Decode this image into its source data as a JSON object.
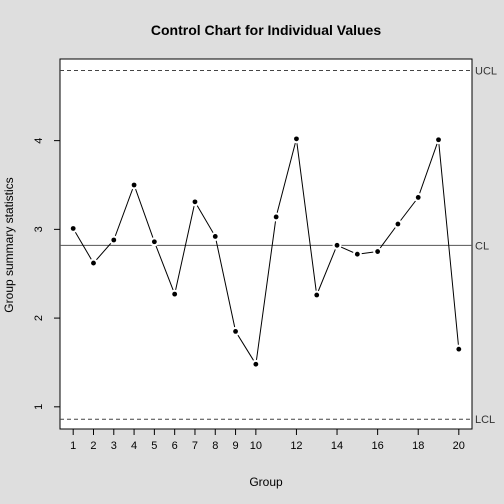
{
  "chart_data": {
    "type": "line",
    "title": "Control Chart for Individual Values",
    "xlabel": "Group",
    "ylabel": "Group summary statistics",
    "x": [
      1,
      2,
      3,
      4,
      5,
      6,
      7,
      8,
      9,
      10,
      11,
      12,
      13,
      14,
      15,
      16,
      17,
      18,
      19,
      20
    ],
    "values": [
      3.01,
      2.62,
      2.88,
      3.5,
      2.86,
      2.27,
      3.31,
      2.92,
      1.85,
      1.48,
      3.14,
      4.02,
      2.26,
      2.82,
      2.72,
      2.75,
      3.06,
      3.36,
      4.01,
      1.65
    ],
    "xlim": [
      0.35,
      20.65
    ],
    "ylim": [
      0.75,
      4.92
    ],
    "x_ticks": [
      1,
      2,
      3,
      4,
      5,
      6,
      7,
      8,
      9,
      10,
      12,
      14,
      16,
      18,
      20
    ],
    "y_ticks": [
      1,
      2,
      3,
      4
    ],
    "limits": [
      {
        "label": "UCL",
        "value": 4.79,
        "style": "dashed"
      },
      {
        "label": "CL",
        "value": 2.82,
        "style": "solid"
      },
      {
        "label": "LCL",
        "value": 0.86,
        "style": "dashed"
      }
    ],
    "grid": false,
    "colors": {
      "background": "#dedede",
      "plot_area": "#ffffff",
      "line": "#000000",
      "center_line": "#555555"
    }
  }
}
